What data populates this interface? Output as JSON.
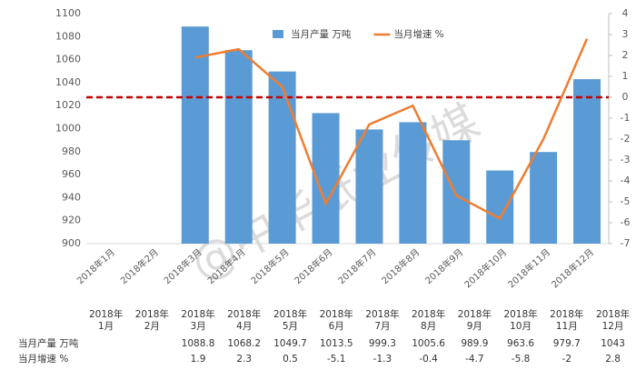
{
  "chart_data": {
    "type": "bar_line",
    "categories": [
      "2018年1月",
      "2018年2月",
      "2018年3月",
      "2018年4月",
      "2018年5月",
      "2018年6月",
      "2018年7月",
      "2018年8月",
      "2018年9月",
      "2018年10月",
      "2018年11月",
      "2018年12月"
    ],
    "series": [
      {
        "name": "当月产量 万吨",
        "type": "bar",
        "color": "#5b9bd5",
        "values": [
          null,
          null,
          1088.8,
          1068.2,
          1049.7,
          1013.5,
          999.3,
          1005.6,
          989.9,
          963.6,
          979.7,
          1043
        ]
      },
      {
        "name": "当月增速 %",
        "type": "line",
        "axis": "y2",
        "color": "#ed7d31",
        "values": [
          null,
          null,
          1.9,
          2.3,
          0.5,
          -5.1,
          -1.3,
          -0.4,
          -4.7,
          -5.8,
          -2,
          2.8
        ]
      }
    ],
    "ylim": [
      900,
      1100
    ],
    "yticks": [
      900,
      920,
      940,
      960,
      980,
      1000,
      1020,
      1040,
      1060,
      1080,
      1100
    ],
    "y2lim": [
      -7,
      4
    ],
    "y2ticks": [
      -7,
      -6,
      -5,
      -4,
      -3,
      -2,
      -1,
      0,
      1,
      2,
      3,
      4
    ],
    "reference_line": {
      "value": 0,
      "axis": "y2",
      "color": "#c00000"
    },
    "watermark": "@中华纸业传媒",
    "legend": "top"
  }
}
